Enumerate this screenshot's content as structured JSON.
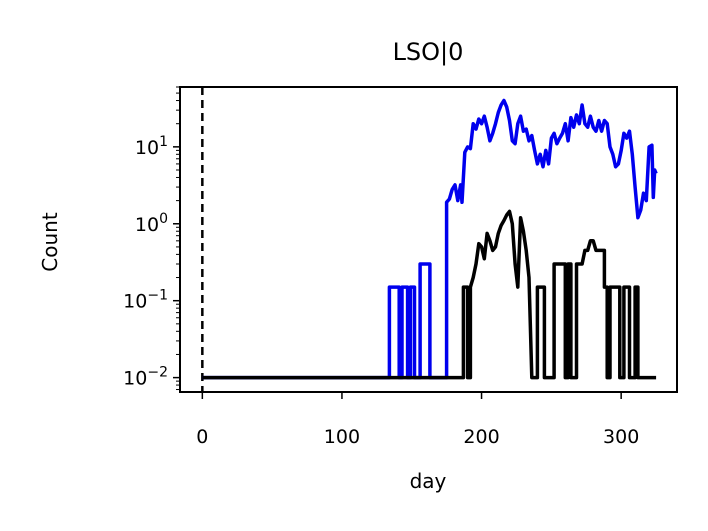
{
  "chart_data": {
    "type": "line",
    "title": "LSO|0",
    "xlabel": "day",
    "ylabel": "Count",
    "yscale": "log",
    "xlim": [
      -16,
      340
    ],
    "ylim": [
      0.0065,
      60
    ],
    "x_ticks": [
      0,
      100,
      200,
      300
    ],
    "x_tick_labels": [
      "0",
      "100",
      "200",
      "300"
    ],
    "y_ticks": [
      0.01,
      0.1,
      1,
      10
    ],
    "y_tick_labels": [
      {
        "base": "10",
        "exp": "−2"
      },
      {
        "base": "10",
        "exp": "−1"
      },
      {
        "base": "10",
        "exp": "0"
      },
      {
        "base": "10",
        "exp": "1"
      }
    ],
    "grid": false,
    "vertical_line": {
      "x": 0,
      "style": "dashed",
      "color": "#000000"
    },
    "series": [
      {
        "color": "#0000ee",
        "points": [
          [
            0,
            0.01
          ],
          [
            134,
            0.01
          ],
          [
            134,
            0.15
          ],
          [
            141,
            0.15
          ],
          [
            141,
            0.01
          ],
          [
            143,
            0.01
          ],
          [
            143,
            0.15
          ],
          [
            147,
            0.15
          ],
          [
            147,
            0.01
          ],
          [
            149,
            0.01
          ],
          [
            149,
            0.15
          ],
          [
            152,
            0.15
          ],
          [
            152,
            0.01
          ],
          [
            156,
            0.01
          ],
          [
            156,
            0.3
          ],
          [
            163,
            0.3
          ],
          [
            163,
            0.01
          ],
          [
            175,
            0.01
          ],
          [
            175,
            1.9
          ],
          [
            177,
            2.1
          ],
          [
            179,
            2.8
          ],
          [
            181,
            3.2
          ],
          [
            183,
            2.0
          ],
          [
            185,
            3.2
          ],
          [
            186,
            1.9
          ],
          [
            188,
            8.5
          ],
          [
            190,
            10
          ],
          [
            192,
            9.5
          ],
          [
            194,
            20
          ],
          [
            196,
            17
          ],
          [
            198,
            23
          ],
          [
            200,
            20
          ],
          [
            202,
            25
          ],
          [
            204,
            18
          ],
          [
            206,
            12
          ],
          [
            208,
            15
          ],
          [
            210,
            20
          ],
          [
            212,
            28
          ],
          [
            214,
            35
          ],
          [
            216,
            40
          ],
          [
            218,
            33
          ],
          [
            220,
            22
          ],
          [
            222,
            12
          ],
          [
            224,
            11
          ],
          [
            226,
            20
          ],
          [
            228,
            25
          ],
          [
            230,
            16
          ],
          [
            232,
            17
          ],
          [
            234,
            12
          ],
          [
            236,
            14
          ],
          [
            238,
            9
          ],
          [
            240,
            6
          ],
          [
            242,
            8
          ],
          [
            244,
            5.5
          ],
          [
            246,
            9
          ],
          [
            248,
            6
          ],
          [
            250,
            13
          ],
          [
            252,
            15
          ],
          [
            254,
            11
          ],
          [
            256,
            13
          ],
          [
            258,
            15
          ],
          [
            260,
            20
          ],
          [
            262,
            12
          ],
          [
            264,
            24
          ],
          [
            266,
            18
          ],
          [
            268,
            26
          ],
          [
            270,
            20
          ],
          [
            272,
            35
          ],
          [
            274,
            20
          ],
          [
            276,
            18
          ],
          [
            278,
            25
          ],
          [
            280,
            18
          ],
          [
            282,
            16
          ],
          [
            284,
            22
          ],
          [
            286,
            16
          ],
          [
            288,
            22
          ],
          [
            290,
            20
          ],
          [
            292,
            10
          ],
          [
            294,
            8
          ],
          [
            296,
            5.5
          ],
          [
            298,
            6
          ],
          [
            300,
            9
          ],
          [
            302,
            15
          ],
          [
            304,
            13
          ],
          [
            306,
            16
          ],
          [
            308,
            8
          ],
          [
            310,
            3
          ],
          [
            312,
            1.2
          ],
          [
            314,
            1.5
          ],
          [
            316,
            2.5
          ],
          [
            318,
            2
          ],
          [
            320,
            10
          ],
          [
            322,
            10.5
          ],
          [
            323,
            2.2
          ],
          [
            324,
            5
          ],
          [
            325,
            4.5
          ]
        ]
      },
      {
        "color": "#000000",
        "points": [
          [
            0,
            0.01
          ],
          [
            187,
            0.01
          ],
          [
            187,
            0.15
          ],
          [
            190,
            0.15
          ],
          [
            190,
            0.01
          ],
          [
            192,
            0.01
          ],
          [
            192,
            0.15
          ],
          [
            194,
            0.2
          ],
          [
            196,
            0.3
          ],
          [
            198,
            0.55
          ],
          [
            200,
            0.5
          ],
          [
            202,
            0.35
          ],
          [
            204,
            0.75
          ],
          [
            206,
            0.6
          ],
          [
            208,
            0.45
          ],
          [
            210,
            0.5
          ],
          [
            212,
            0.75
          ],
          [
            214,
            0.95
          ],
          [
            216,
            1.1
          ],
          [
            218,
            1.3
          ],
          [
            220,
            1.45
          ],
          [
            222,
            1.0
          ],
          [
            224,
            0.3
          ],
          [
            226,
            0.15
          ],
          [
            228,
            1.2
          ],
          [
            230,
            0.8
          ],
          [
            232,
            0.45
          ],
          [
            234,
            0.2
          ],
          [
            236,
            0.01
          ],
          [
            240,
            0.01
          ],
          [
            240,
            0.15
          ],
          [
            245,
            0.15
          ],
          [
            245,
            0.01
          ],
          [
            252,
            0.01
          ],
          [
            252,
            0.3
          ],
          [
            260,
            0.3
          ],
          [
            260,
            0.01
          ],
          [
            262,
            0.01
          ],
          [
            262,
            0.3
          ],
          [
            264,
            0.3
          ],
          [
            264,
            0.01
          ],
          [
            268,
            0.01
          ],
          [
            268,
            0.3
          ],
          [
            270,
            0.3
          ],
          [
            272,
            0.3
          ],
          [
            274,
            0.45
          ],
          [
            276,
            0.45
          ],
          [
            278,
            0.6
          ],
          [
            280,
            0.6
          ],
          [
            282,
            0.45
          ],
          [
            288,
            0.45
          ],
          [
            288,
            0.15
          ],
          [
            290,
            0.15
          ],
          [
            290,
            0.01
          ],
          [
            292,
            0.01
          ],
          [
            292,
            0.15
          ],
          [
            299,
            0.15
          ],
          [
            299,
            0.01
          ],
          [
            302,
            0.01
          ],
          [
            302,
            0.15
          ],
          [
            306,
            0.15
          ],
          [
            306,
            0.01
          ],
          [
            310,
            0.01
          ],
          [
            310,
            0.15
          ],
          [
            312,
            0.15
          ],
          [
            312,
            0.01
          ],
          [
            325,
            0.01
          ]
        ]
      }
    ]
  }
}
